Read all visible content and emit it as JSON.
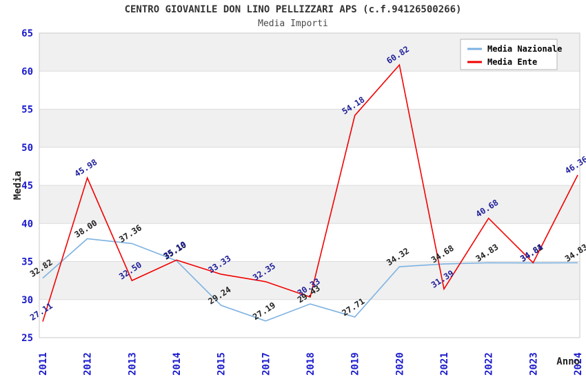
{
  "chart_data": {
    "type": "line",
    "title": "CENTRO GIOVANILE DON LINO PELLIZZARI APS (c.f.94126500266)",
    "subtitle": "Media Importi",
    "xlabel": "Anno",
    "ylabel": "Media",
    "ylim": [
      25,
      65
    ],
    "ytick_step": 5,
    "yticks": [
      25,
      30,
      35,
      40,
      45,
      50,
      55,
      60,
      65
    ],
    "grid": "horizontal-bands",
    "legend_position": "top-right",
    "categories": [
      "2011",
      "2012",
      "2013",
      "2014",
      "2015",
      "2017",
      "2018",
      "2019",
      "2020",
      "2021",
      "2022",
      "2023",
      "2024"
    ],
    "series": [
      {
        "name": "Media Nazionale",
        "color": "#7cb2e2",
        "label_color": "#222222",
        "values": [
          32.82,
          38.0,
          37.36,
          35.1,
          29.24,
          27.19,
          29.43,
          27.71,
          34.32,
          34.68,
          34.83,
          34.81,
          34.83
        ]
      },
      {
        "name": "Media Ente",
        "color": "#f20000",
        "label_color": "#1f1f99",
        "values": [
          27.11,
          45.98,
          32.5,
          35.19,
          33.33,
          32.35,
          30.33,
          54.18,
          60.82,
          31.39,
          40.68,
          34.84,
          46.36
        ]
      }
    ],
    "colors": {
      "band_fill": "#f0f0f0",
      "gridline": "#dcdcdc",
      "plot_border": "#c9c9c9",
      "tick_label": "#1a1acc",
      "axis_title": "#222222",
      "legend_border": "#b5b5b5",
      "legend_bg": "#ffffff",
      "legend_text": "#000000"
    }
  }
}
